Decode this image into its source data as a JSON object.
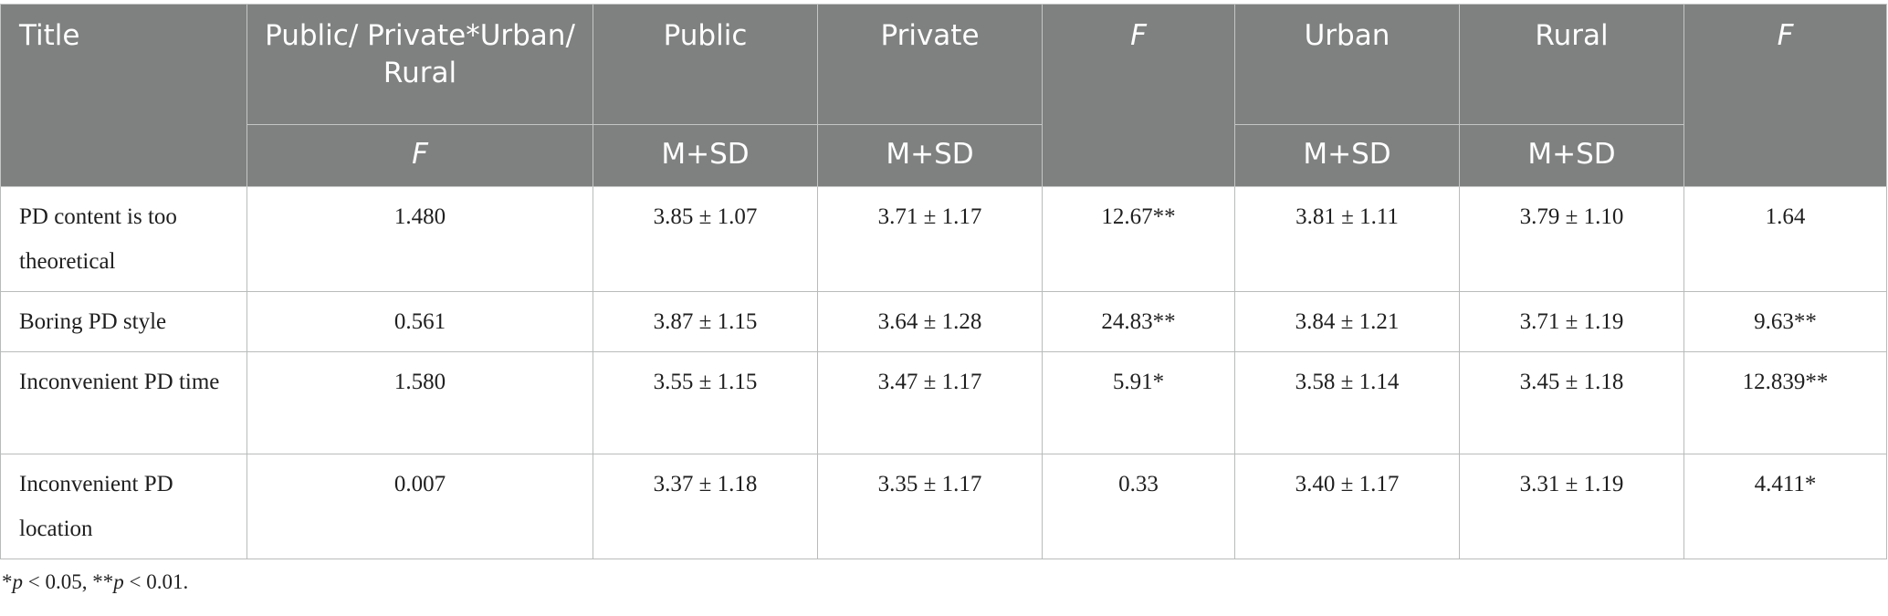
{
  "header": {
    "title": "Title",
    "public_private_urban_rural": "Public/ Private*Urban/ Rural",
    "public": "Public",
    "private": "Private",
    "f_1": "F",
    "urban": "Urban",
    "rural": "Rural",
    "f_2": "F",
    "sub_f": "F",
    "sub_msd_public": "M+SD",
    "sub_msd_private": "M+SD",
    "sub_msd_urban": "M+SD",
    "sub_msd_rural": "M+SD"
  },
  "rows": [
    {
      "title": "PD content is too theoretical",
      "interaction_f": "1.480",
      "public": "3.85 ± 1.07",
      "private": "3.71 ± 1.17",
      "f_pp": "12.67**",
      "urban": "3.81 ± 1.11",
      "rural": "3.79 ± 1.10",
      "f_ur": "1.64"
    },
    {
      "title": "Boring PD style",
      "interaction_f": "0.561",
      "public": "3.87 ± 1.15",
      "private": "3.64 ± 1.28",
      "f_pp": "24.83**",
      "urban": "3.84 ± 1.21",
      "rural": "3.71 ± 1.19",
      "f_ur": "9.63**"
    },
    {
      "title": "Inconvenient PD time",
      "interaction_f": "1.580",
      "public": "3.55 ± 1.15",
      "private": "3.47 ± 1.17",
      "f_pp": "5.91*",
      "urban": "3.58 ± 1.14",
      "rural": "3.45 ± 1.18",
      "f_ur": "12.839**"
    },
    {
      "title": "Inconvenient PD location",
      "interaction_f": "0.007",
      "public": "3.37 ± 1.18",
      "private": "3.35 ± 1.17",
      "f_pp": "0.33",
      "urban": "3.40 ± 1.17",
      "rural": "3.31 ± 1.19",
      "f_ur": "4.411*"
    }
  ],
  "note": {
    "star1": "*",
    "p1": "p",
    "text1": " < 0.05, **",
    "p2": "p",
    "text2": " < 0.01."
  }
}
